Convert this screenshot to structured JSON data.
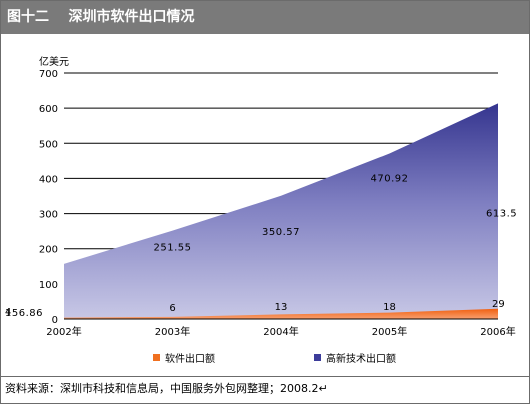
{
  "header": {
    "title": "图十二    深圳市软件出口情况"
  },
  "footer": {
    "source": "资料来源：深圳市科技和信息局，中国服务外包网整理；2008.2↵"
  },
  "colors": {
    "high_tech": "#3c3c9a",
    "software": "#f07020",
    "title_bar": "#7a7a7a"
  },
  "chart_data": {
    "type": "area",
    "ylabel": "亿美元",
    "xlabel": "",
    "ylim": [
      0,
      700
    ],
    "yticks": [
      0,
      100,
      200,
      300,
      400,
      500,
      600,
      700
    ],
    "categories": [
      "2002年",
      "2003年",
      "2004年",
      "2005年",
      "2006年"
    ],
    "grid": true,
    "legend_position": "bottom",
    "series": [
      {
        "name": "软件出口额",
        "values": [
          4,
          6,
          13,
          18,
          29
        ],
        "labels": [
          "4",
          "6",
          "13",
          "18",
          "29"
        ]
      },
      {
        "name": "高新技术出口额",
        "values": [
          156.86,
          251.55,
          350.57,
          470.92,
          613.5
        ],
        "labels": [
          "156.86",
          "251.55",
          "350.57",
          "470.92",
          "613.5"
        ]
      }
    ]
  }
}
